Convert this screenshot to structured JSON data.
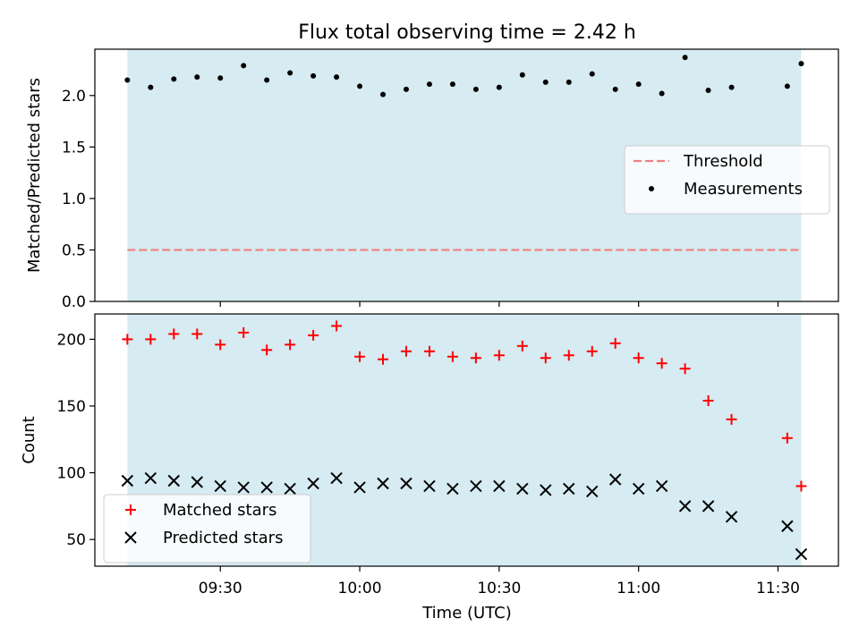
{
  "title": "Flux total observing time = 2.42 h",
  "xlabel": "Time (UTC)",
  "x_ticks": [
    "09:30",
    "10:00",
    "10:30",
    "11:00",
    "11:30"
  ],
  "colors": {
    "shade": "#add8e6",
    "threshold": "#f08080",
    "matched": "#ff0000",
    "predicted": "#000000"
  },
  "chart_data": [
    {
      "type": "scatter",
      "panel": "top",
      "ylabel": "Matched/Predicted stars",
      "ylim": [
        0.0,
        2.45
      ],
      "y_ticks": [
        "0.0",
        "0.5",
        "1.0",
        "1.5",
        "2.0"
      ],
      "y_tick_values": [
        0.0,
        0.5,
        1.0,
        1.5,
        2.0
      ],
      "xlim": [
        "09:03",
        "11:43"
      ],
      "shaded_span": [
        "09:10",
        "11:35"
      ],
      "legend_position": "center-right",
      "threshold": {
        "name": "Threshold",
        "value": 0.5,
        "style": "dashed"
      },
      "series": [
        {
          "name": "Measurements",
          "x": [
            "09:10",
            "09:15",
            "09:20",
            "09:25",
            "09:30",
            "09:35",
            "09:40",
            "09:45",
            "09:50",
            "09:55",
            "10:00",
            "10:05",
            "10:10",
            "10:15",
            "10:20",
            "10:25",
            "10:30",
            "10:35",
            "10:40",
            "10:45",
            "10:50",
            "10:55",
            "11:00",
            "11:05",
            "11:10",
            "11:15",
            "11:20",
            "11:32",
            "11:35"
          ],
          "y": [
            2.15,
            2.08,
            2.16,
            2.18,
            2.17,
            2.29,
            2.15,
            2.22,
            2.19,
            2.18,
            2.09,
            2.01,
            2.06,
            2.11,
            2.11,
            2.06,
            2.08,
            2.2,
            2.13,
            2.13,
            2.21,
            2.06,
            2.11,
            2.02,
            2.37,
            2.05,
            2.08,
            2.09,
            2.31
          ]
        }
      ]
    },
    {
      "type": "scatter",
      "panel": "bottom",
      "ylabel": "Count",
      "ylim": [
        30,
        219
      ],
      "y_ticks": [
        "50",
        "100",
        "150",
        "200"
      ],
      "y_tick_values": [
        50,
        100,
        150,
        200
      ],
      "xlim": [
        "09:03",
        "11:43"
      ],
      "shaded_span": [
        "09:10",
        "11:35"
      ],
      "legend_position": "lower-left",
      "series": [
        {
          "name": "Matched stars",
          "marker": "plus",
          "x": [
            "09:10",
            "09:15",
            "09:20",
            "09:25",
            "09:30",
            "09:35",
            "09:40",
            "09:45",
            "09:50",
            "09:55",
            "10:00",
            "10:05",
            "10:10",
            "10:15",
            "10:20",
            "10:25",
            "10:30",
            "10:35",
            "10:40",
            "10:45",
            "10:50",
            "10:55",
            "11:00",
            "11:05",
            "11:10",
            "11:15",
            "11:20",
            "11:32",
            "11:35"
          ],
          "y": [
            200,
            200,
            204,
            204,
            196,
            205,
            192,
            196,
            203,
            210,
            187,
            185,
            191,
            191,
            187,
            186,
            188,
            195,
            186,
            188,
            191,
            197,
            186,
            182,
            178,
            154,
            140,
            126,
            90
          ]
        },
        {
          "name": "Predicted stars",
          "marker": "x",
          "x": [
            "09:10",
            "09:15",
            "09:20",
            "09:25",
            "09:30",
            "09:35",
            "09:40",
            "09:45",
            "09:50",
            "09:55",
            "10:00",
            "10:05",
            "10:10",
            "10:15",
            "10:20",
            "10:25",
            "10:30",
            "10:35",
            "10:40",
            "10:45",
            "10:50",
            "10:55",
            "11:00",
            "11:05",
            "11:10",
            "11:15",
            "11:20",
            "11:32",
            "11:35"
          ],
          "y": [
            94,
            96,
            94,
            93,
            90,
            89,
            89,
            88,
            92,
            96,
            89,
            92,
            92,
            90,
            88,
            90,
            90,
            88,
            87,
            88,
            86,
            95,
            88,
            90,
            75,
            75,
            67,
            60,
            39
          ]
        }
      ]
    }
  ]
}
